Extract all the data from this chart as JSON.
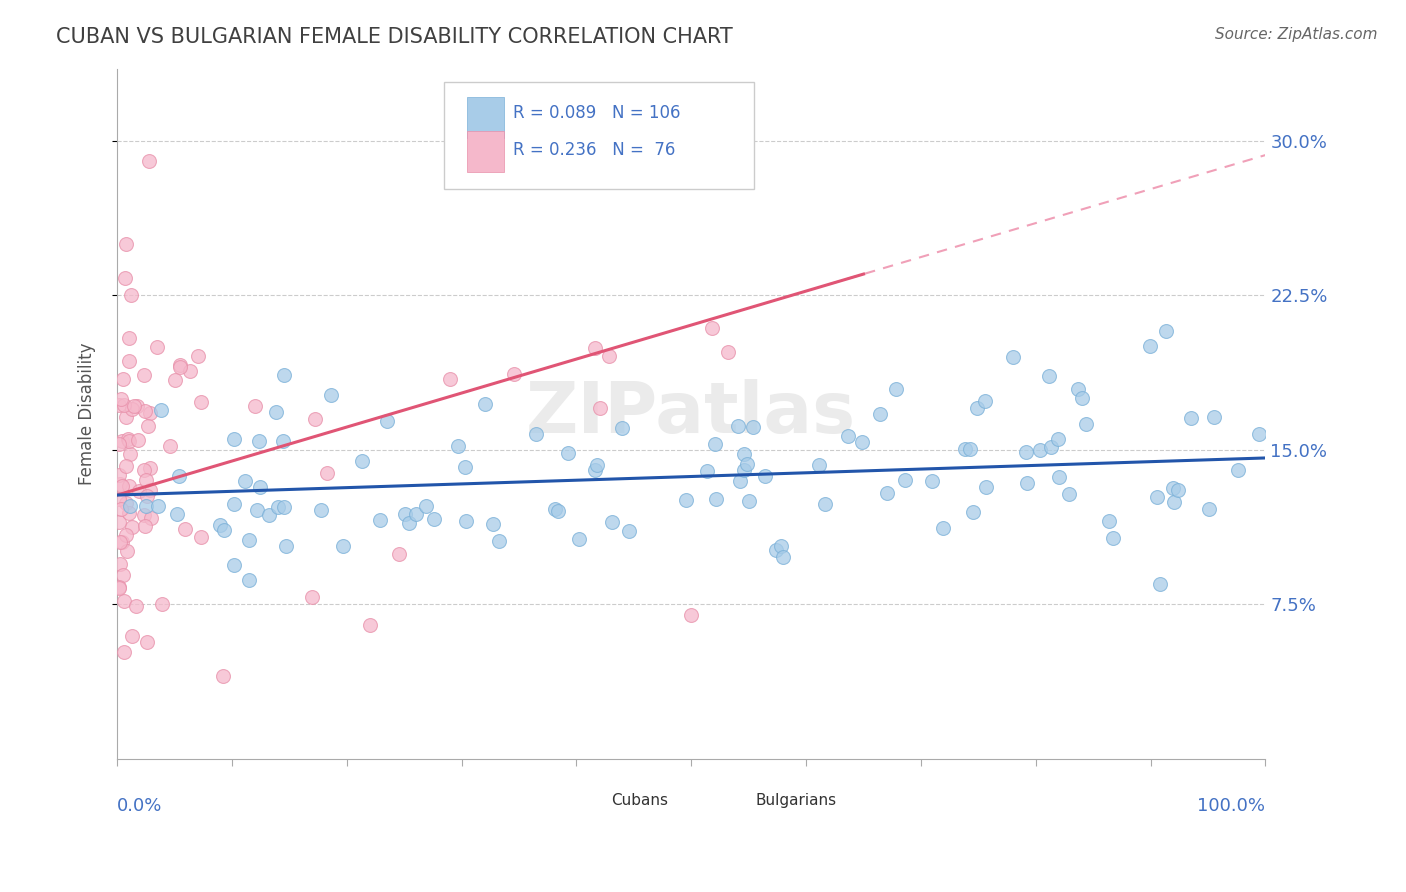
{
  "title": "CUBAN VS BULGARIAN FEMALE DISABILITY CORRELATION CHART",
  "source": "Source: ZipAtlas.com",
  "ylabel": "Female Disability",
  "ytick_vals": [
    0.075,
    0.15,
    0.225,
    0.3
  ],
  "ytick_labels": [
    "7.5%",
    "15.0%",
    "22.5%",
    "30.0%"
  ],
  "xlim": [
    0.0,
    1.0
  ],
  "ylim": [
    0.0,
    0.335
  ],
  "cuban_R": 0.089,
  "cuban_N": 106,
  "bulgarian_R": 0.236,
  "bulgarian_N": 76,
  "cuban_color": "#a8cce8",
  "cuban_edge_color": "#7ab0d8",
  "cuban_line_color": "#2255aa",
  "bulgarian_color": "#f5b8cb",
  "bulgarian_edge_color": "#e890aa",
  "bulgarian_line_color": "#e05575",
  "bulgarian_dash_color": "#f0a0b8",
  "background_color": "#ffffff",
  "grid_color": "#cccccc",
  "title_color": "#404040",
  "axis_label_color": "#4472c4",
  "legend_text_color": "#4472c4",
  "source_color": "#666666",
  "watermark_color": "#e8e8e8",
  "scatter_size": 100,
  "scatter_alpha": 0.75
}
